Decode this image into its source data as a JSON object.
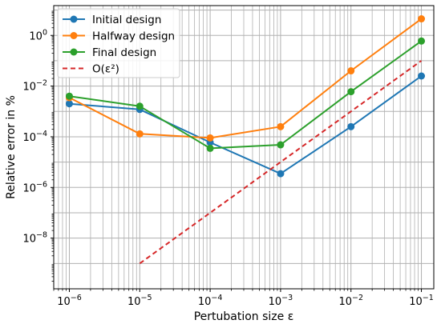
{
  "chart_data": {
    "type": "line",
    "xlabel": "Pertubation size ε",
    "ylabel": "Relative error in %",
    "xscale": "log",
    "yscale": "log",
    "xlim": [
      6e-07,
      0.15
    ],
    "ylim": [
      1e-10,
      15
    ],
    "grid": "both-major-and-minor",
    "legend_position": "top-left",
    "x_ticks": [
      {
        "value": 1e-06,
        "base": "10",
        "exp": "−6"
      },
      {
        "value": 1e-05,
        "base": "10",
        "exp": "−5"
      },
      {
        "value": 0.0001,
        "base": "10",
        "exp": "−4"
      },
      {
        "value": 0.001,
        "base": "10",
        "exp": "−3"
      },
      {
        "value": 0.01,
        "base": "10",
        "exp": "−2"
      },
      {
        "value": 0.1,
        "base": "10",
        "exp": "−1"
      }
    ],
    "y_ticks": [
      {
        "value": 1e-08,
        "base": "10",
        "exp": "−8"
      },
      {
        "value": 1e-06,
        "base": "10",
        "exp": "−6"
      },
      {
        "value": 0.0001,
        "base": "10",
        "exp": "−4"
      },
      {
        "value": 0.01,
        "base": "10",
        "exp": "−2"
      },
      {
        "value": 1,
        "base": "10",
        "exp": "0"
      }
    ],
    "series": [
      {
        "name": "Initial design",
        "color": "#1f77b4",
        "style": "solid-marker",
        "x": [
          1e-06,
          1e-05,
          0.0001,
          0.001,
          0.01,
          0.1
        ],
        "y": [
          0.002,
          0.0012,
          6e-05,
          3.5e-06,
          0.00025,
          0.025
        ]
      },
      {
        "name": "Halfway design",
        "color": "#ff7f0e",
        "style": "solid-marker",
        "x": [
          1e-06,
          1e-05,
          0.0001,
          0.001,
          0.01,
          0.1
        ],
        "y": [
          0.0035,
          0.00013,
          9e-05,
          0.00025,
          0.04,
          4.5
        ]
      },
      {
        "name": "Final design",
        "color": "#2ca02c",
        "style": "solid-marker",
        "x": [
          1e-06,
          1e-05,
          0.0001,
          0.001,
          0.01,
          0.1
        ],
        "y": [
          0.004,
          0.0016,
          3.5e-05,
          4.8e-05,
          0.006,
          0.6
        ]
      },
      {
        "name": "O(ε²)",
        "color": "#d62728",
        "style": "dashed",
        "x": [
          1e-05,
          0.0001,
          0.001,
          0.01,
          0.1
        ],
        "y": [
          1e-09,
          1e-07,
          1e-05,
          0.001,
          0.1
        ]
      }
    ]
  }
}
